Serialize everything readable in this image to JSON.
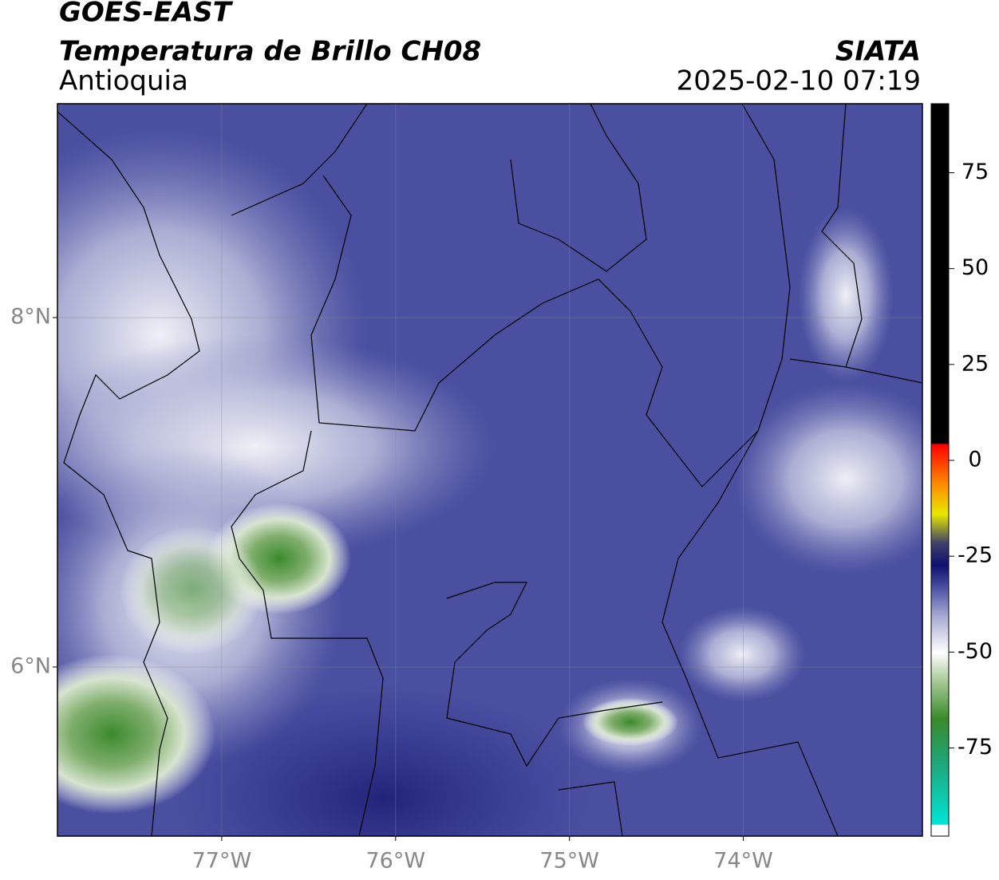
{
  "header": {
    "title": "GOES-EAST",
    "subtitle": "Temperatura de Brillo CH08",
    "region": "Antioquia",
    "source": "SIATA",
    "timestamp": "2025-02-10 07:19"
  },
  "map": {
    "lonlim": [
      -77.945,
      -72.97
    ],
    "latlim": [
      5.032,
      9.224
    ],
    "lon_ticks": [
      {
        "value": -77,
        "label": "77°W"
      },
      {
        "value": -76,
        "label": "76°W"
      },
      {
        "value": -75,
        "label": "75°W"
      },
      {
        "value": -74,
        "label": "74°W"
      }
    ],
    "lat_ticks": [
      {
        "value": 8,
        "label": "8°N"
      },
      {
        "value": 6,
        "label": "6°N"
      }
    ]
  },
  "colorbar": {
    "clim": [
      -98,
      93
    ],
    "ticks": [
      75,
      50,
      25,
      0,
      -25,
      -50,
      -75
    ]
  }
}
